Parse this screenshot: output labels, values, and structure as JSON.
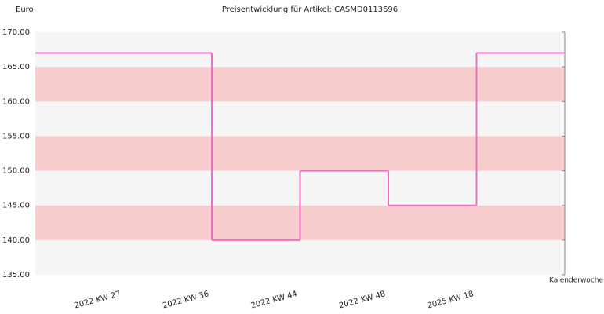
{
  "chart_data": {
    "type": "step",
    "title": "Preisentwicklung für Artikel: CASMD0113696",
    "y_label": "Euro",
    "x_label": "Kalenderwoche",
    "categories": [
      "2022 KW 27",
      "2022 KW 36",
      "2022 KW 44",
      "2022 KW 48",
      "2025 KW 18"
    ],
    "values": [
      167,
      140,
      150,
      145,
      167
    ],
    "color": "#f06ec8",
    "ylim": [
      135,
      170
    ],
    "yticks": [
      {
        "value": 135,
        "label": "135.00"
      },
      {
        "value": 140,
        "label": "140.00"
      },
      {
        "value": 145,
        "label": "145.00"
      },
      {
        "value": 150,
        "label": "150.00"
      },
      {
        "value": 155,
        "label": "155.00"
      },
      {
        "value": 160,
        "label": "160.00"
      },
      {
        "value": 165,
        "label": "165.00"
      },
      {
        "value": 170,
        "label": "170.00"
      }
    ],
    "band_colors": [
      "#f5f5f5",
      "#f7cccc"
    ]
  }
}
